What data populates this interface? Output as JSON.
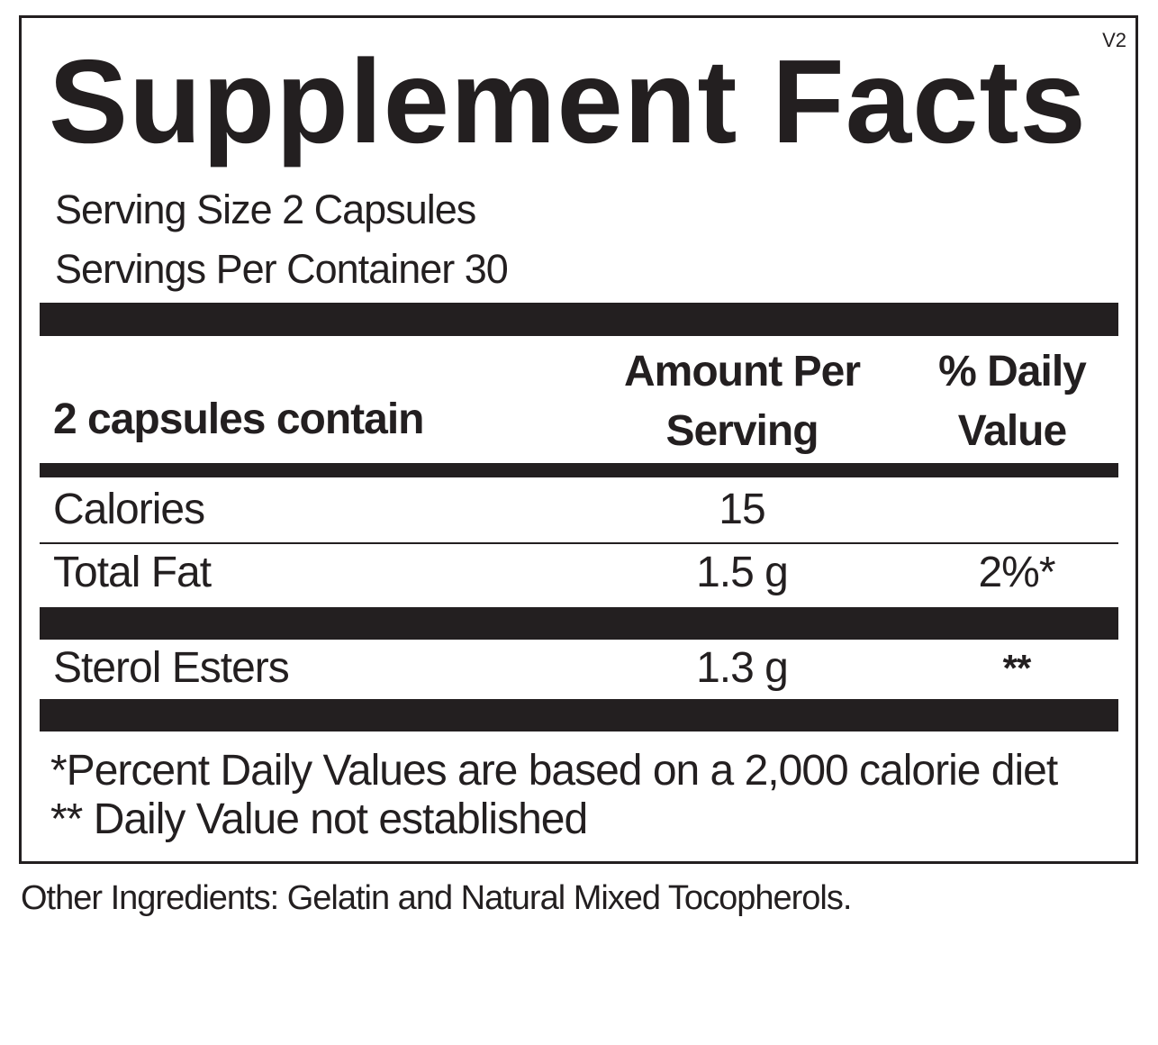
{
  "label": {
    "version": "V2",
    "title": "Supplement Facts",
    "serving_size": "Serving Size 2 Capsules",
    "servings_per_container": "Servings Per Container 30"
  },
  "table": {
    "headers": {
      "contain": "2 capsules contain",
      "amount_line1": "Amount Per",
      "amount_line2": "Serving",
      "dv_line1": "% Daily",
      "dv_line2": "Value"
    },
    "rows": [
      {
        "name": "Calories",
        "amount": "15",
        "dv": ""
      },
      {
        "name": "Total Fat",
        "amount": "1.5 g",
        "dv": "2%*"
      },
      {
        "name": "Sterol Esters",
        "amount": "1.3 g",
        "dv": "**"
      }
    ]
  },
  "footnotes": {
    "line1": "*Percent Daily Values are based on a 2,000 calorie diet",
    "line2": "** Daily Value not established"
  },
  "other_ingredients": "Other Ingredients: Gelatin and Natural Mixed Tocopherols."
}
